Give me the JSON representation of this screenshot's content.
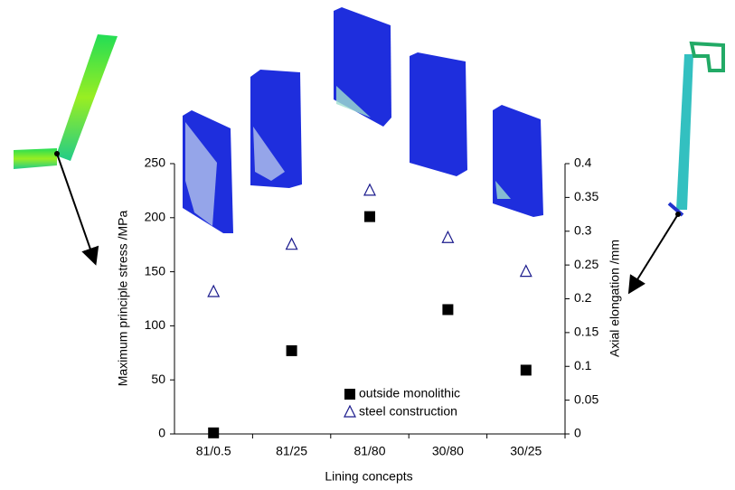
{
  "chart_data": {
    "type": "scatter",
    "categories": [
      "81/0.5",
      "81/25",
      "81/80",
      "30/80",
      "30/25"
    ],
    "x_label": "Lining concepts",
    "y_label": "Maximum principle stress /MPa",
    "y2_label": "Axial elongation /mm",
    "ylim": [
      0,
      250
    ],
    "yticks": [
      0,
      50,
      100,
      150,
      200,
      250
    ],
    "y2lim": [
      0,
      0.4
    ],
    "y2ticks": [
      0,
      0.05,
      0.1,
      0.15,
      0.2,
      0.25,
      0.3,
      0.35,
      0.4
    ],
    "series": [
      {
        "name": "outside monolithic",
        "color": "#000000",
        "marker": "square",
        "values": [
          1,
          77,
          201,
          115,
          59
        ]
      },
      {
        "name": "steel construction",
        "color": "#1a1a8c",
        "marker": "triangle",
        "axis": "y2",
        "values": [
          0.21,
          0.28,
          0.36,
          0.29,
          0.24
        ]
      }
    ]
  }
}
